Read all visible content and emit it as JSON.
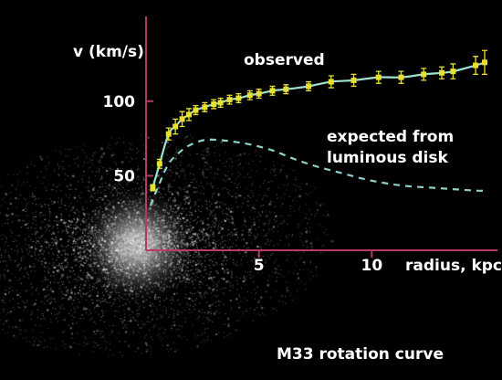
{
  "chart_data": {
    "type": "line",
    "ylabel": "v (km/s)",
    "xlabel": "radius, kpc",
    "caption": "M33 rotation curve",
    "xlim": [
      0,
      15
    ],
    "ylim": [
      0,
      136
    ],
    "x_ticks": [
      5,
      10
    ],
    "y_ticks": [
      50,
      100
    ],
    "series": [
      {
        "name": "observed",
        "color": "#e8e030",
        "curve_color": "#9fe0d0",
        "marker": "square-with-error-bars",
        "x": [
          0.3,
          0.6,
          1.0,
          1.3,
          1.6,
          1.9,
          2.2,
          2.6,
          3.0,
          3.3,
          3.7,
          4.1,
          4.6,
          5.0,
          5.6,
          6.2,
          7.2,
          8.2,
          9.2,
          10.3,
          11.3,
          12.3,
          13.1,
          13.6,
          14.6,
          15.0
        ],
        "y": [
          42,
          58,
          78,
          83,
          88,
          91,
          94,
          96,
          98,
          99,
          101,
          102,
          104,
          105,
          107,
          108,
          110,
          113,
          114,
          116,
          116,
          118,
          119,
          120,
          124,
          126
        ],
        "err": [
          2,
          3,
          4,
          5,
          5,
          4,
          3,
          3,
          3,
          3,
          3,
          3,
          3,
          3,
          3,
          3,
          3,
          4,
          4,
          4,
          4,
          4,
          4,
          5,
          6,
          8
        ]
      },
      {
        "name": "expected from luminous disk",
        "color": "#8fd0c8",
        "line_style": "dashed",
        "x": [
          0.2,
          0.6,
          1.0,
          1.5,
          2.0,
          2.6,
          3.2,
          3.8,
          4.6,
          5.6,
          6.6,
          7.6,
          8.6,
          9.6,
          10.6,
          11.6,
          12.6,
          13.6,
          14.6,
          15.0
        ],
        "y": [
          30,
          45,
          58,
          66,
          71,
          74,
          74,
          73,
          71,
          67,
          61,
          56,
          52,
          48,
          45,
          43,
          42,
          41,
          40,
          40
        ]
      }
    ],
    "annotations": {
      "observed": "observed",
      "expected_line1": "expected from",
      "expected_line2": "luminous disk"
    },
    "background": "photograph of the galaxy M33 behind the chart",
    "axis_color": "#b8386a",
    "grid": false
  }
}
